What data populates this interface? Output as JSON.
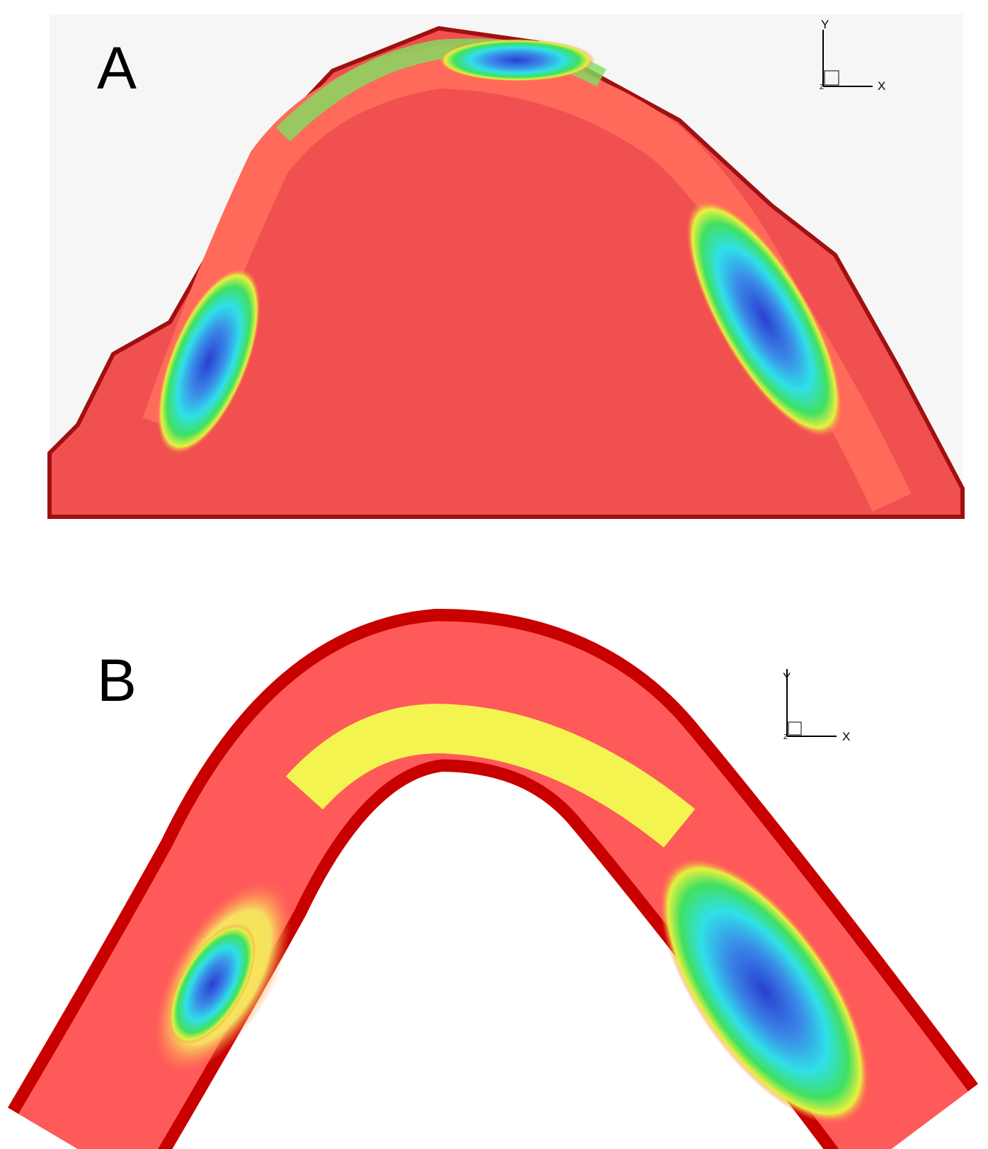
{
  "panels": [
    {
      "label": "A",
      "axes": {
        "y": "Y",
        "x": "X",
        "z": "Z"
      }
    },
    {
      "label": "B",
      "axes": {
        "y": "Y",
        "x": "X",
        "z": "Z"
      }
    }
  ]
}
